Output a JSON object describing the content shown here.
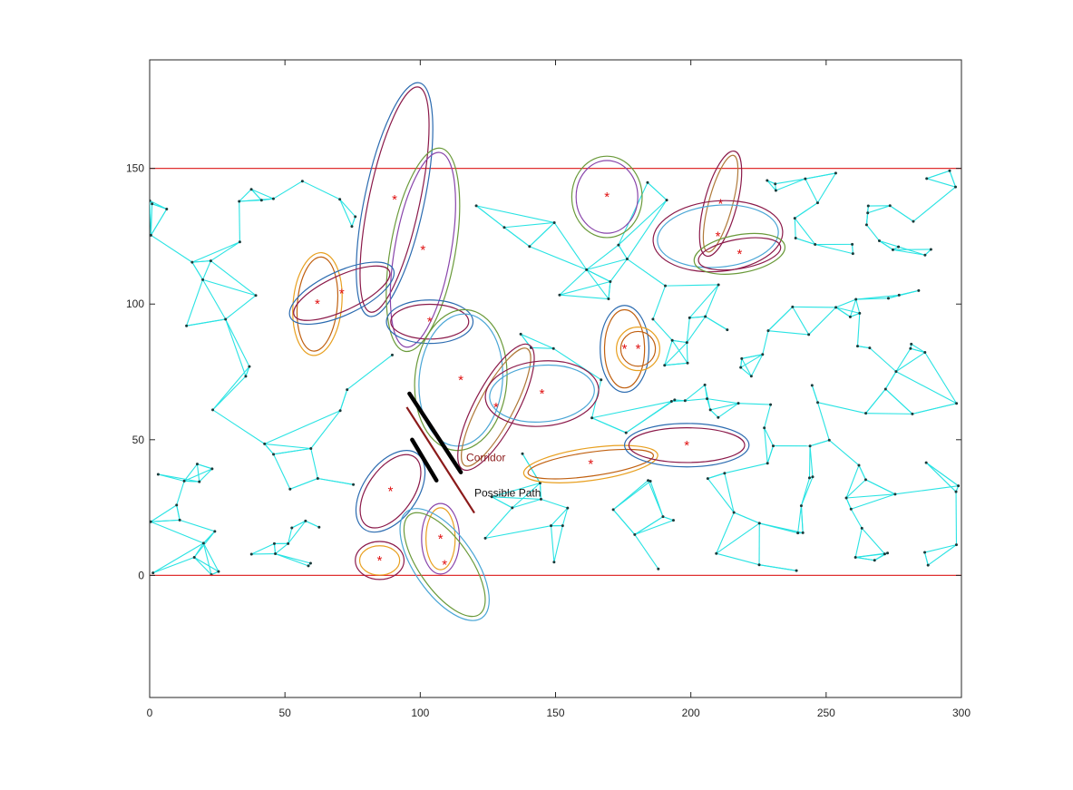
{
  "chart_data": {
    "type": "scatter",
    "title": "",
    "xlabel": "",
    "ylabel": "",
    "xlim": [
      0,
      300
    ],
    "ylim": [
      -45,
      190
    ],
    "x_ticks": [
      0,
      50,
      100,
      150,
      200,
      250,
      300
    ],
    "y_ticks": [
      0,
      50,
      100,
      150
    ],
    "grid": false,
    "legend": "none",
    "boundaries": {
      "y_values": [
        0,
        150
      ],
      "color": "#e03030"
    },
    "annotations": [
      {
        "text": "Corridor",
        "x": 117,
        "y": 42,
        "color": "#8b1a1a"
      },
      {
        "text": "Possible Path",
        "x": 120,
        "y": 29,
        "color": "#111111"
      }
    ],
    "corridor": {
      "thick_segments": [
        {
          "x": [
            96,
            115
          ],
          "y": [
            67,
            38
          ]
        },
        {
          "x": [
            97,
            106
          ],
          "y": [
            50,
            35
          ]
        }
      ],
      "path_line": {
        "x": [
          95,
          120
        ],
        "y": [
          62,
          23
        ],
        "color": "#8b1a1a"
      }
    },
    "obstacles": [
      {
        "x": 90.5,
        "y": 138.5,
        "rx": 11,
        "ry": 44,
        "angle": 12,
        "colors": [
          "#2b6bb0",
          "#8b1a4a"
        ]
      },
      {
        "x": 101,
        "y": 120,
        "rx": 12,
        "ry": 38,
        "angle": 10,
        "colors": [
          "#6a9a3a",
          "#8844aa"
        ]
      },
      {
        "x": 62,
        "y": 100,
        "rx": 9,
        "ry": 19,
        "angle": 5,
        "colors": [
          "#e8a020",
          "#c06010"
        ]
      },
      {
        "x": 71,
        "y": 104,
        "rx": 21,
        "ry": 8,
        "angle": -25,
        "colors": [
          "#2b6bb0",
          "#8b1a4a"
        ]
      },
      {
        "x": 103.5,
        "y": 93.5,
        "rx": 16,
        "ry": 8,
        "angle": 0,
        "colors": [
          "#2b6bb0",
          "#8b1a4a"
        ]
      },
      {
        "x": 115,
        "y": 72,
        "rx": 17,
        "ry": 26,
        "angle": 5,
        "colors": [
          "#6a9a3a",
          "#4aa6d6"
        ]
      },
      {
        "x": 128,
        "y": 62,
        "rx": 8,
        "ry": 26,
        "angle": 28,
        "colors": [
          "#8b1a4a",
          "#b07a3a"
        ]
      },
      {
        "x": 145,
        "y": 67,
        "rx": 21,
        "ry": 12,
        "angle": -5,
        "colors": [
          "#8b1a4a",
          "#4aa6d6"
        ]
      },
      {
        "x": 169,
        "y": 139.5,
        "rx": 13,
        "ry": 15,
        "angle": 0,
        "colors": [
          "#6a9a3a",
          "#8844aa"
        ]
      },
      {
        "x": 175.5,
        "y": 83.5,
        "rx": 9,
        "ry": 16,
        "angle": 0,
        "colors": [
          "#2b6bb0",
          "#c06010"
        ]
      },
      {
        "x": 180.5,
        "y": 83.5,
        "rx": 8,
        "ry": 8,
        "angle": 0,
        "colors": [
          "#e8a020",
          "#c06010"
        ]
      },
      {
        "x": 163,
        "y": 41,
        "rx": 25,
        "ry": 6,
        "angle": -8,
        "colors": [
          "#e8a020",
          "#c06010"
        ]
      },
      {
        "x": 198.5,
        "y": 48,
        "rx": 23,
        "ry": 8,
        "angle": 0,
        "colors": [
          "#2b6bb0",
          "#8b1a4a"
        ]
      },
      {
        "x": 211,
        "y": 137,
        "rx": 6,
        "ry": 20,
        "angle": 15,
        "colors": [
          "#8b1a4a",
          "#b07a3a"
        ]
      },
      {
        "x": 210,
        "y": 125,
        "rx": 24,
        "ry": 13,
        "angle": -5,
        "colors": [
          "#8b1a4a",
          "#4aa6d6"
        ]
      },
      {
        "x": 218,
        "y": 118.5,
        "rx": 17,
        "ry": 7,
        "angle": -10,
        "colors": [
          "#6a9a3a",
          "#8b1a4a"
        ]
      },
      {
        "x": 89,
        "y": 31,
        "rx": 10,
        "ry": 17,
        "angle": 35,
        "colors": [
          "#2b6bb0",
          "#8b1a4a"
        ]
      },
      {
        "x": 85,
        "y": 5.5,
        "rx": 9,
        "ry": 7,
        "angle": 0,
        "colors": [
          "#8b1a4a",
          "#e8a020"
        ]
      },
      {
        "x": 107.5,
        "y": 13.5,
        "rx": 7,
        "ry": 13,
        "angle": 0,
        "colors": [
          "#8844aa",
          "#e8a020"
        ]
      },
      {
        "x": 109,
        "y": 4,
        "rx": 11,
        "ry": 24,
        "angle": -35,
        "colors": [
          "#4aa6d6",
          "#6a9a3a"
        ]
      }
    ]
  }
}
